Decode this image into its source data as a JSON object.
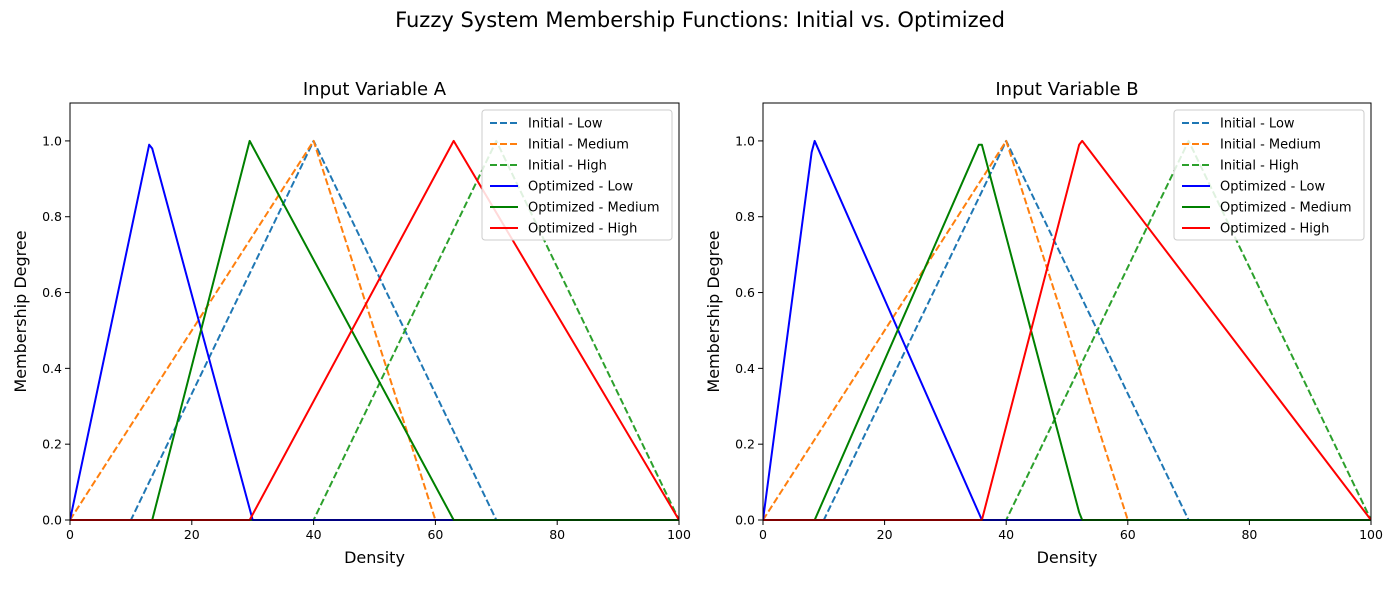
{
  "figure_title": "Fuzzy System Membership Functions: Initial vs. Optimized",
  "colors": {
    "low": "#1f77b4",
    "medium": "#ff7f0e",
    "high": "#2ca02c",
    "opt_low": "#0000ff",
    "opt_medium": "#008000",
    "opt_high": "#ff0000"
  },
  "chart_data": [
    {
      "type": "line",
      "title": "Input Variable A",
      "xlabel": "Density",
      "ylabel": "Membership Degree",
      "xlim": [
        0,
        100
      ],
      "ylim": [
        0,
        1.1
      ],
      "xticks": [
        0,
        20,
        40,
        60,
        80,
        100
      ],
      "yticks": [
        0.0,
        0.2,
        0.4,
        0.6,
        0.8,
        1.0
      ],
      "xtick_labels": [
        "0",
        "20",
        "40",
        "60",
        "80",
        "100"
      ],
      "ytick_labels": [
        "0.0",
        "0.2",
        "0.4",
        "0.6",
        "0.8",
        "1.0"
      ],
      "grid": false,
      "legend": "top-right",
      "series": [
        {
          "name": "Initial - Low",
          "style": "dashed",
          "color": "#1f77b4",
          "x": [
            0,
            10,
            40,
            70,
            100
          ],
          "y": [
            0,
            0,
            1,
            0,
            0
          ]
        },
        {
          "name": "Initial - Medium",
          "style": "dashed",
          "color": "#ff7f0e",
          "x": [
            0,
            40,
            60,
            100
          ],
          "y": [
            0,
            1,
            0,
            0
          ]
        },
        {
          "name": "Initial - High",
          "style": "dashed",
          "color": "#2ca02c",
          "x": [
            0,
            40,
            70,
            100
          ],
          "y": [
            0,
            0,
            1,
            0
          ]
        },
        {
          "name": "Optimized - Low",
          "style": "solid",
          "color": "#0000ff",
          "x": [
            0,
            13,
            13.5,
            30,
            100
          ],
          "y": [
            0,
            0.99,
            0.98,
            0,
            0
          ]
        },
        {
          "name": "Optimized - Medium",
          "style": "solid",
          "color": "#008000",
          "x": [
            0,
            13.5,
            29.5,
            63,
            100
          ],
          "y": [
            0,
            0,
            1,
            0,
            0
          ]
        },
        {
          "name": "Optimized - High",
          "style": "solid",
          "color": "#ff0000",
          "x": [
            0,
            29.5,
            63,
            100
          ],
          "y": [
            0,
            0,
            1,
            0
          ]
        }
      ]
    },
    {
      "type": "line",
      "title": "Input Variable B",
      "xlabel": "Density",
      "ylabel": "Membership Degree",
      "xlim": [
        0,
        100
      ],
      "ylim": [
        0,
        1.1
      ],
      "xticks": [
        0,
        20,
        40,
        60,
        80,
        100
      ],
      "yticks": [
        0.0,
        0.2,
        0.4,
        0.6,
        0.8,
        1.0
      ],
      "xtick_labels": [
        "0",
        "20",
        "40",
        "60",
        "80",
        "100"
      ],
      "ytick_labels": [
        "0.0",
        "0.2",
        "0.4",
        "0.6",
        "0.8",
        "1.0"
      ],
      "grid": false,
      "legend": "top-right",
      "series": [
        {
          "name": "Initial - Low",
          "style": "dashed",
          "color": "#1f77b4",
          "x": [
            0,
            10,
            40,
            70,
            100
          ],
          "y": [
            0,
            0,
            1,
            0,
            0
          ]
        },
        {
          "name": "Initial - Medium",
          "style": "dashed",
          "color": "#ff7f0e",
          "x": [
            0,
            40,
            60,
            100
          ],
          "y": [
            0,
            1,
            0,
            0
          ]
        },
        {
          "name": "Initial - High",
          "style": "dashed",
          "color": "#2ca02c",
          "x": [
            0,
            40,
            70,
            100
          ],
          "y": [
            0,
            0,
            1,
            0
          ]
        },
        {
          "name": "Optimized - Low",
          "style": "solid",
          "color": "#0000ff",
          "x": [
            0,
            8,
            8.5,
            36,
            100
          ],
          "y": [
            0,
            0.97,
            1,
            0,
            0
          ]
        },
        {
          "name": "Optimized - Medium",
          "style": "solid",
          "color": "#008000",
          "x": [
            0,
            8.5,
            35.5,
            36,
            52,
            52.5,
            100
          ],
          "y": [
            0,
            0,
            0.99,
            0.99,
            0.02,
            0,
            0
          ]
        },
        {
          "name": "Optimized - High",
          "style": "solid",
          "color": "#ff0000",
          "x": [
            0,
            36,
            52,
            52.5,
            100
          ],
          "y": [
            0,
            0,
            0.99,
            1,
            0
          ]
        }
      ]
    }
  ]
}
